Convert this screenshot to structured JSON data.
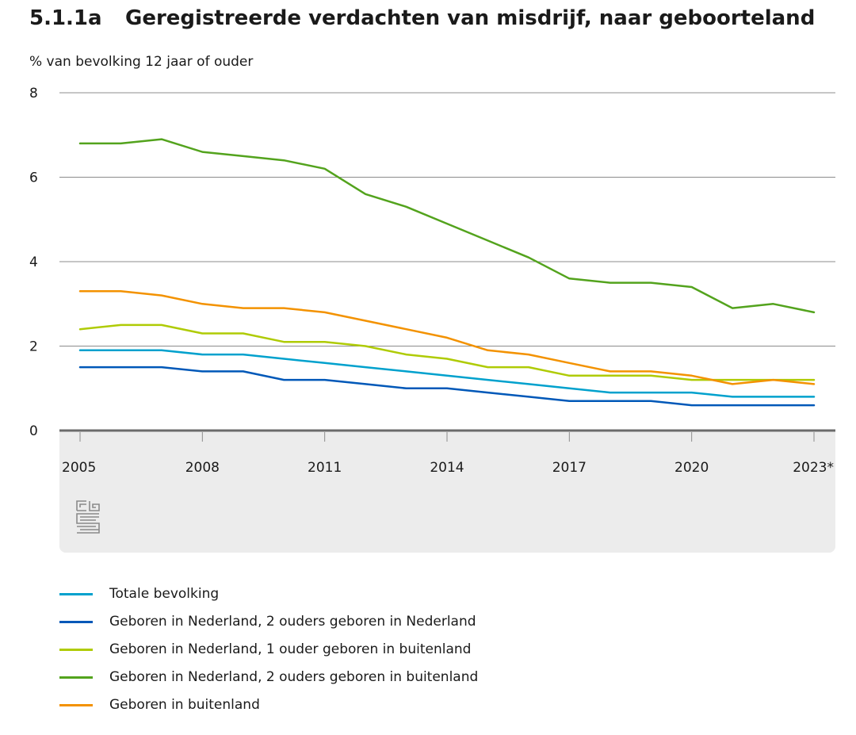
{
  "header": {
    "number": "5.1.1a",
    "title": "Geregistreerde verdachten van misdrijf, naar geboorteland",
    "unit": "% van bevolking 12 jaar of ouder"
  },
  "chart_data": {
    "type": "line",
    "title": "Geregistreerde verdachten van misdrijf, naar geboorteland",
    "ylabel": "% van bevolking 12 jaar of ouder",
    "xlabel": "",
    "ylim": [
      0,
      8
    ],
    "yticks": [
      0,
      2,
      4,
      6,
      8
    ],
    "x": [
      2005,
      2006,
      2007,
      2008,
      2009,
      2010,
      2011,
      2012,
      2013,
      2014,
      2015,
      2016,
      2017,
      2018,
      2019,
      2020,
      2021,
      2022,
      2023
    ],
    "xticks": [
      2005,
      2008,
      2011,
      2014,
      2017,
      2020,
      2023
    ],
    "xtick_labels": [
      "2005",
      "2008",
      "2011",
      "2014",
      "2017",
      "2020",
      "2023*"
    ],
    "grid": true,
    "legend_position": "bottom",
    "series": [
      {
        "name": "Totale bevolking",
        "color": "#00a1cd",
        "values": [
          1.9,
          1.9,
          1.9,
          1.8,
          1.8,
          1.7,
          1.6,
          1.5,
          1.4,
          1.3,
          1.2,
          1.1,
          1.0,
          0.9,
          0.9,
          0.9,
          0.8,
          0.8,
          0.8
        ]
      },
      {
        "name": "Geboren in Nederland, 2 ouders geboren in Nederland",
        "color": "#0058b8",
        "values": [
          1.5,
          1.5,
          1.5,
          1.4,
          1.4,
          1.2,
          1.2,
          1.1,
          1.0,
          1.0,
          0.9,
          0.8,
          0.7,
          0.7,
          0.7,
          0.6,
          0.6,
          0.6,
          0.6
        ]
      },
      {
        "name": "Geboren in Nederland, 1 ouder geboren in buitenland",
        "color": "#afcb05",
        "values": [
          2.4,
          2.5,
          2.5,
          2.3,
          2.3,
          2.1,
          2.1,
          2.0,
          1.8,
          1.7,
          1.5,
          1.5,
          1.3,
          1.3,
          1.3,
          1.2,
          1.2,
          1.2,
          1.2
        ]
      },
      {
        "name": "Geboren in Nederland, 2 ouders geboren in buitenland",
        "color": "#53a31d",
        "values": [
          6.8,
          6.8,
          6.9,
          6.6,
          6.5,
          6.4,
          6.2,
          5.6,
          5.3,
          4.9,
          4.5,
          4.1,
          3.6,
          3.5,
          3.5,
          3.4,
          2.9,
          3.0,
          2.8
        ]
      },
      {
        "name": "Geboren in buitenland",
        "color": "#f39200",
        "values": [
          3.3,
          3.3,
          3.2,
          3.0,
          2.9,
          2.9,
          2.8,
          2.6,
          2.4,
          2.2,
          1.9,
          1.8,
          1.6,
          1.4,
          1.4,
          1.3,
          1.1,
          1.2,
          1.1
        ]
      }
    ]
  },
  "logo": {
    "name": "cbs-logo"
  }
}
